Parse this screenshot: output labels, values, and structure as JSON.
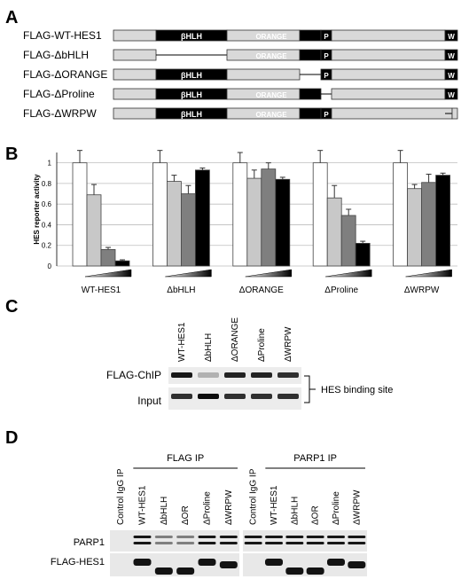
{
  "panels": {
    "A": {
      "letter": "A",
      "constructs": [
        {
          "label": "FLAG-WT-HES1",
          "missing": "none"
        },
        {
          "label": "FLAG-ΔbHLH",
          "missing": "bhlh"
        },
        {
          "label": "FLAG-ΔORANGE",
          "missing": "orange"
        },
        {
          "label": "FLAG-ΔProline",
          "missing": "proline"
        },
        {
          "label": "FLAG-ΔWRPW",
          "missing": "wrpw"
        }
      ],
      "domain_labels": {
        "bhlh": "βHLH",
        "orange": "ORANGE",
        "proline": "P",
        "wrpw": "W"
      }
    },
    "B": {
      "letter": "B"
    },
    "C": {
      "letter": "C",
      "lanes": [
        "WT-HES1",
        "ΔbHLH",
        "ΔORANGE",
        "ΔProline",
        "ΔWRPW"
      ],
      "rows": [
        "FLAG-ChIP",
        "Input"
      ],
      "bracket_label": "HES binding site",
      "flag_chip_intensity": [
        0.9,
        0.25,
        0.85,
        0.85,
        0.8
      ],
      "input_intensity": [
        0.8,
        0.95,
        0.8,
        0.8,
        0.8
      ]
    },
    "D": {
      "letter": "D",
      "groups": [
        {
          "title": "FLAG IP",
          "lanes": [
            "Control IgG IP",
            "WT-HES1",
            "ΔbHLH",
            "ΔOR",
            "ΔProline",
            "ΔWRPW"
          ]
        },
        {
          "title": "PARP1 IP",
          "lanes": [
            "Control IgG IP",
            "WT-HES1",
            "ΔbHLH",
            "ΔOR",
            "ΔProline",
            "ΔWRPW"
          ]
        }
      ],
      "rows": [
        "PARP1",
        "FLAG-HES1"
      ]
    }
  },
  "chart_data": {
    "type": "bar",
    "title": "",
    "ylabel": "HES reporter activity",
    "ylim": [
      0,
      1.1
    ],
    "yticks": [
      "0",
      "0.2",
      "0.4",
      "0.6",
      "0.8",
      "1"
    ],
    "groups": [
      "WT-HES1",
      "ΔbHLH",
      "ΔORANGE",
      "ΔProline",
      "ΔWRPW"
    ],
    "bar_colors": [
      "#ffffff",
      "#c8c8c8",
      "#7f7f7f",
      "#000000"
    ],
    "values": [
      [
        1.0,
        0.69,
        0.16,
        0.05
      ],
      [
        1.0,
        0.82,
        0.7,
        0.93
      ],
      [
        1.0,
        0.85,
        0.94,
        0.84
      ],
      [
        1.0,
        0.66,
        0.49,
        0.22
      ],
      [
        1.0,
        0.75,
        0.81,
        0.88
      ]
    ],
    "errors": [
      [
        0.12,
        0.1,
        0.02,
        0.01
      ],
      [
        0.12,
        0.06,
        0.08,
        0.02
      ],
      [
        0.1,
        0.08,
        0.06,
        0.02
      ],
      [
        0.12,
        0.12,
        0.06,
        0.02
      ],
      [
        0.12,
        0.04,
        0.08,
        0.02
      ]
    ]
  }
}
